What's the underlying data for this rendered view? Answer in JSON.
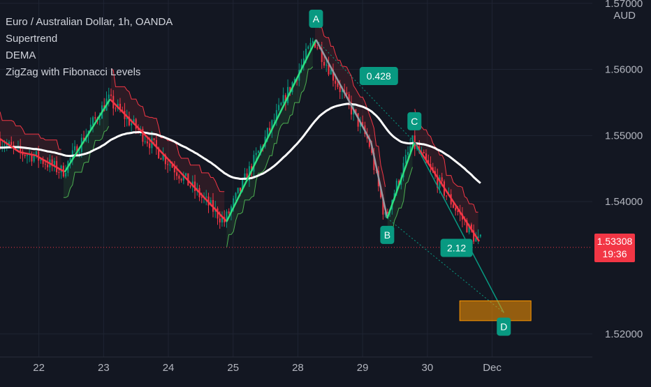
{
  "chart_data": {
    "type": "candlestick",
    "title": "Euro / Australian Dollar, 1h, OANDA",
    "indicators": [
      "Supertrend",
      "DEMA",
      "ZigZag with Fibonacci Levels"
    ],
    "y_unit": "AUD",
    "ylim": [
      1.5165,
      1.5705
    ],
    "y_ticks": [
      {
        "value": 1.57,
        "label": "1.57000"
      },
      {
        "value": 1.56,
        "label": "1.56000"
      },
      {
        "value": 1.55,
        "label": "1.55000"
      },
      {
        "value": 1.54,
        "label": "1.54000"
      },
      {
        "value": 1.52,
        "label": "1.52000"
      }
    ],
    "x_ticks": [
      {
        "t": 0.6,
        "label": "22"
      },
      {
        "t": 1.6,
        "label": "23"
      },
      {
        "t": 2.6,
        "label": "24"
      },
      {
        "t": 3.6,
        "label": "25"
      },
      {
        "t": 4.6,
        "label": "28"
      },
      {
        "t": 5.6,
        "label": "29"
      },
      {
        "t": 6.6,
        "label": "30"
      },
      {
        "t": 7.6,
        "label": "Dec"
      }
    ],
    "xlim": [
      0,
      8.5
    ],
    "last_price": {
      "value": 1.53308,
      "label": "1.53308",
      "countdown": "19:36"
    },
    "zigzag": [
      {
        "t": 0,
        "v": 1.5495
      },
      {
        "t": 0.3,
        "v": 1.5475
      },
      {
        "t": 0.55,
        "v": 1.547
      },
      {
        "t": 1.0,
        "v": 1.5445
      },
      {
        "t": 1.7,
        "v": 1.5555
      },
      {
        "t": 2.3,
        "v": 1.5495
      },
      {
        "t": 3.5,
        "v": 1.537
      },
      {
        "t": 4.88,
        "v": 1.5645
      },
      {
        "t": 5.73,
        "v": 1.549
      },
      {
        "t": 5.98,
        "v": 1.5375
      },
      {
        "t": 6.4,
        "v": 1.549
      },
      {
        "t": 7.4,
        "v": 1.534
      }
    ],
    "pattern_points": [
      {
        "label": "A",
        "t": 4.88,
        "v": 1.5645
      },
      {
        "label": "B",
        "t": 5.98,
        "v": 1.5375
      },
      {
        "label": "C",
        "t": 6.4,
        "v": 1.549
      },
      {
        "label": "D",
        "t": 7.78,
        "v": 1.5232
      }
    ],
    "fib_labels": [
      {
        "label": "0.428",
        "t": 5.85,
        "v": 1.559
      },
      {
        "label": "2.12",
        "t": 7.05,
        "v": 1.533
      }
    ],
    "target_zone": {
      "v_top": 1.525,
      "v_bottom": 1.522,
      "t_start": 7.1,
      "t_end": 8.2
    },
    "colors": {
      "background": "#131722",
      "up": "#089981",
      "down": "#f23645",
      "zigzag_up": "#2de080",
      "zigzag_down": "#f23645",
      "dema": "#ffffff",
      "label_bg": "#089981",
      "zone": "#ff9800"
    }
  }
}
